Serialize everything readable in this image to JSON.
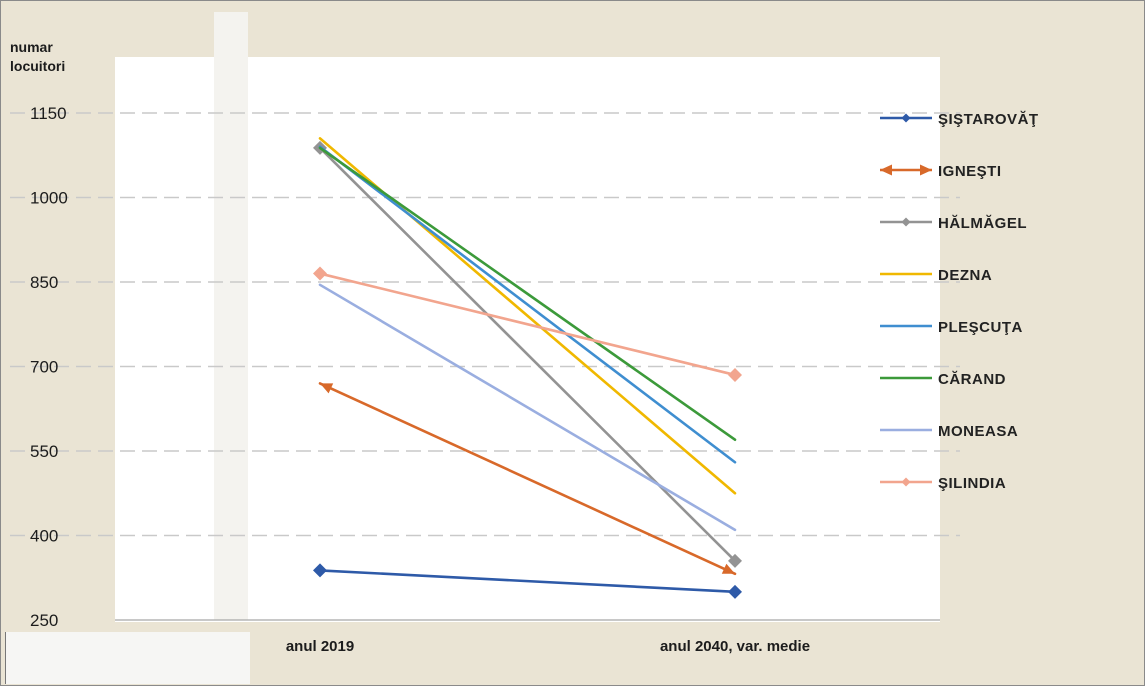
{
  "chart_data": {
    "type": "line",
    "ylabel": "numar\nlocuitori",
    "xlabel": "",
    "categories": [
      "anul 2019",
      "anul 2040, var. medie"
    ],
    "ylim": [
      250,
      1150
    ],
    "yticks": [
      250,
      400,
      550,
      700,
      850,
      1000,
      1150
    ],
    "grid": "horizontal dashed",
    "legend_position": "right",
    "series": [
      {
        "name": "ŞIŞTAROVĂŢ",
        "values": [
          338,
          300
        ],
        "color": "#2e5aa8",
        "marker": "diamond"
      },
      {
        "name": "IGNEŞTI",
        "values": [
          670,
          332
        ],
        "color": "#d8692a",
        "marker": "arrow"
      },
      {
        "name": "HĂLMĂGEL",
        "values": [
          1088,
          355
        ],
        "color": "#939393",
        "marker": "diamond"
      },
      {
        "name": "DEZNA",
        "values": [
          1105,
          475
        ],
        "color": "#f0b800",
        "marker": "none"
      },
      {
        "name": "PLEŞCUŢA",
        "values": [
          1090,
          530
        ],
        "color": "#3f8ed0",
        "marker": "none"
      },
      {
        "name": "CĂRAND",
        "values": [
          1088,
          570
        ],
        "color": "#3c9a3a",
        "marker": "none"
      },
      {
        "name": "MONEASA",
        "values": [
          845,
          410
        ],
        "color": "#9aaee0",
        "marker": "none"
      },
      {
        "name": "ŞILINDIA",
        "values": [
          865,
          685
        ],
        "color": "#f2a58e",
        "marker": "diamond"
      }
    ]
  }
}
